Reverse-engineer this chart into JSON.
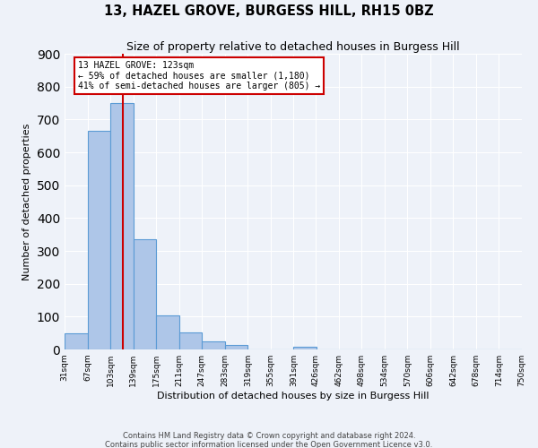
{
  "title": "13, HAZEL GROVE, BURGESS HILL, RH15 0BZ",
  "subtitle": "Size of property relative to detached houses in Burgess Hill",
  "xlabel": "Distribution of detached houses by size in Burgess Hill",
  "ylabel": "Number of detached properties",
  "bin_edges": [
    31,
    67,
    103,
    139,
    175,
    211,
    247,
    283,
    319,
    355,
    391,
    426,
    462,
    498,
    534,
    570,
    606,
    642,
    678,
    714,
    750
  ],
  "bin_heights": [
    50,
    665,
    750,
    335,
    105,
    52,
    25,
    13,
    0,
    0,
    8,
    0,
    0,
    0,
    0,
    0,
    0,
    0,
    0,
    0
  ],
  "bar_color": "#aec6e8",
  "bar_edge_color": "#5b9bd5",
  "bar_linewidth": 0.8,
  "vline_x": 123,
  "vline_color": "#cc0000",
  "annotation_line1": "13 HAZEL GROVE: 123sqm",
  "annotation_line2": "← 59% of detached houses are smaller (1,180)",
  "annotation_line3": "41% of semi-detached houses are larger (805) →",
  "ylim": [
    0,
    900
  ],
  "xlim": [
    31,
    750
  ],
  "tick_labels": [
    "31sqm",
    "67sqm",
    "103sqm",
    "139sqm",
    "175sqm",
    "211sqm",
    "247sqm",
    "283sqm",
    "319sqm",
    "355sqm",
    "391sqm",
    "426sqm",
    "462sqm",
    "498sqm",
    "534sqm",
    "570sqm",
    "606sqm",
    "642sqm",
    "678sqm",
    "714sqm",
    "750sqm"
  ],
  "footer_line1": "Contains HM Land Registry data © Crown copyright and database right 2024.",
  "footer_line2": "Contains public sector information licensed under the Open Government Licence v3.0.",
  "background_color": "#eef2f9",
  "grid_color": "#ffffff",
  "title_fontsize": 10.5,
  "subtitle_fontsize": 9,
  "axis_label_fontsize": 8,
  "tick_fontsize": 6.5,
  "footer_fontsize": 6
}
